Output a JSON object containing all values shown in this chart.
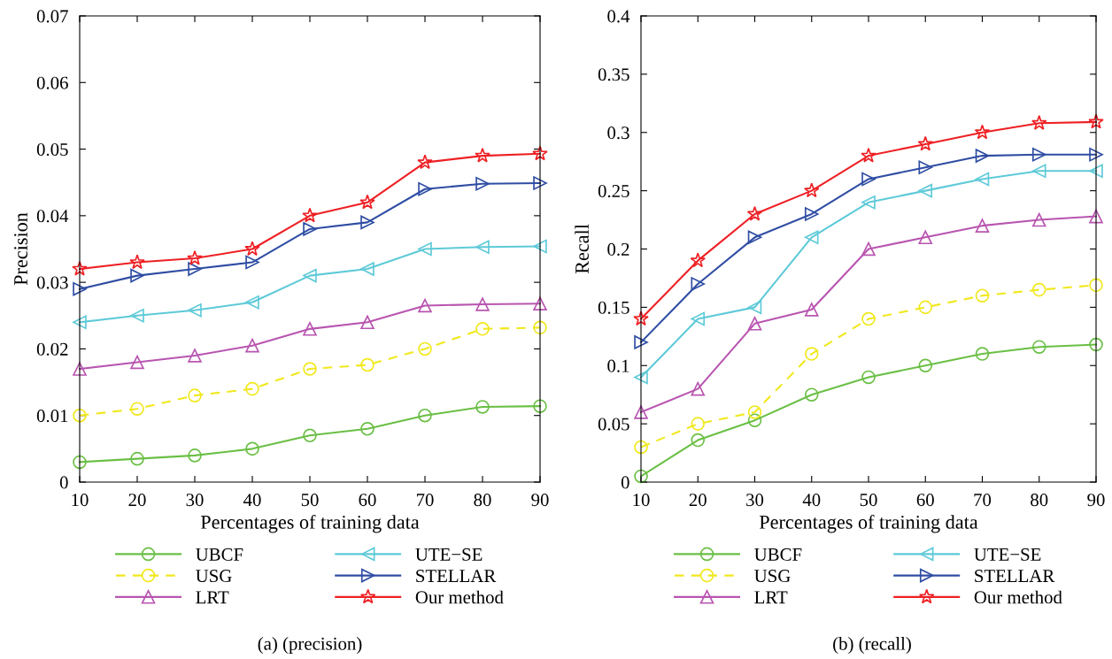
{
  "chart_data": [
    {
      "type": "line",
      "xlabel": "Percentages of training data",
      "ylabel": "Precision",
      "x": [
        10,
        20,
        30,
        40,
        50,
        60,
        70,
        80,
        90
      ],
      "xlim": [
        10,
        90
      ],
      "xticks": [
        10,
        20,
        30,
        40,
        50,
        60,
        70,
        80,
        90
      ],
      "ylim": [
        0,
        0.07
      ],
      "yticks": [
        0,
        0.01,
        0.02,
        0.03,
        0.04,
        0.05,
        0.06,
        0.07
      ],
      "grid": false,
      "legend": "bottom",
      "annotations": [
        "(a) (precision)"
      ],
      "series": [
        {
          "name": "UBCF",
          "color": "#6abf45",
          "marker": "circle",
          "line_style": "solid",
          "values": [
            0.003,
            0.0035,
            0.004,
            0.005,
            0.007,
            0.008,
            0.01,
            0.0113,
            0.0114
          ]
        },
        {
          "name": "USG",
          "color": "#f0e81c",
          "marker": "circle",
          "line_style": "dashed",
          "values": [
            0.01,
            0.011,
            0.013,
            0.014,
            0.017,
            0.0176,
            0.02,
            0.023,
            0.0232
          ]
        },
        {
          "name": "LRT",
          "color": "#b855b0",
          "marker": "triangle",
          "line_style": "solid",
          "values": [
            0.017,
            0.018,
            0.019,
            0.0205,
            0.023,
            0.024,
            0.0265,
            0.0267,
            0.0268
          ]
        },
        {
          "name": "UTE−SE",
          "color": "#5ecad8",
          "marker": "triangle_left",
          "line_style": "solid",
          "values": [
            0.024,
            0.025,
            0.0258,
            0.027,
            0.031,
            0.032,
            0.035,
            0.0353,
            0.0354
          ]
        },
        {
          "name": "STELLAR",
          "color": "#2f4da3",
          "marker": "triangle_right",
          "line_style": "solid",
          "values": [
            0.029,
            0.031,
            0.032,
            0.033,
            0.038,
            0.039,
            0.044,
            0.0448,
            0.0449
          ]
        },
        {
          "name": "Our method",
          "color": "#ee2024",
          "marker": "star",
          "line_style": "solid",
          "values": [
            0.032,
            0.033,
            0.0336,
            0.035,
            0.04,
            0.042,
            0.048,
            0.049,
            0.0493
          ]
        }
      ]
    },
    {
      "type": "line",
      "xlabel": "Percentages of training data",
      "ylabel": "Recall",
      "x": [
        10,
        20,
        30,
        40,
        50,
        60,
        70,
        80,
        90
      ],
      "xlim": [
        10,
        90
      ],
      "xticks": [
        10,
        20,
        30,
        40,
        50,
        60,
        70,
        80,
        90
      ],
      "ylim": [
        0,
        0.4
      ],
      "yticks": [
        0,
        0.05,
        0.1,
        0.15,
        0.2,
        0.25,
        0.3,
        0.35,
        0.4
      ],
      "grid": false,
      "legend": "bottom",
      "annotations": [
        "(b) (recall)"
      ],
      "series": [
        {
          "name": "UBCF",
          "color": "#6abf45",
          "marker": "circle",
          "line_style": "solid",
          "values": [
            0.005,
            0.036,
            0.053,
            0.075,
            0.09,
            0.1,
            0.11,
            0.116,
            0.118
          ]
        },
        {
          "name": "USG",
          "color": "#f0e81c",
          "marker": "circle",
          "line_style": "dashed",
          "values": [
            0.03,
            0.05,
            0.06,
            0.11,
            0.14,
            0.15,
            0.16,
            0.165,
            0.169
          ]
        },
        {
          "name": "LRT",
          "color": "#b855b0",
          "marker": "triangle",
          "line_style": "solid",
          "values": [
            0.06,
            0.08,
            0.136,
            0.148,
            0.2,
            0.21,
            0.22,
            0.225,
            0.228
          ]
        },
        {
          "name": "UTE−SE",
          "color": "#5ecad8",
          "marker": "triangle_left",
          "line_style": "solid",
          "values": [
            0.09,
            0.14,
            0.15,
            0.21,
            0.24,
            0.25,
            0.26,
            0.267,
            0.267
          ]
        },
        {
          "name": "STELLAR",
          "color": "#2f4da3",
          "marker": "triangle_right",
          "line_style": "solid",
          "values": [
            0.12,
            0.17,
            0.21,
            0.23,
            0.26,
            0.27,
            0.28,
            0.281,
            0.281
          ]
        },
        {
          "name": "Our method",
          "color": "#ee2024",
          "marker": "star",
          "line_style": "solid",
          "values": [
            0.14,
            0.19,
            0.23,
            0.25,
            0.28,
            0.29,
            0.3,
            0.308,
            0.309
          ]
        }
      ]
    }
  ]
}
